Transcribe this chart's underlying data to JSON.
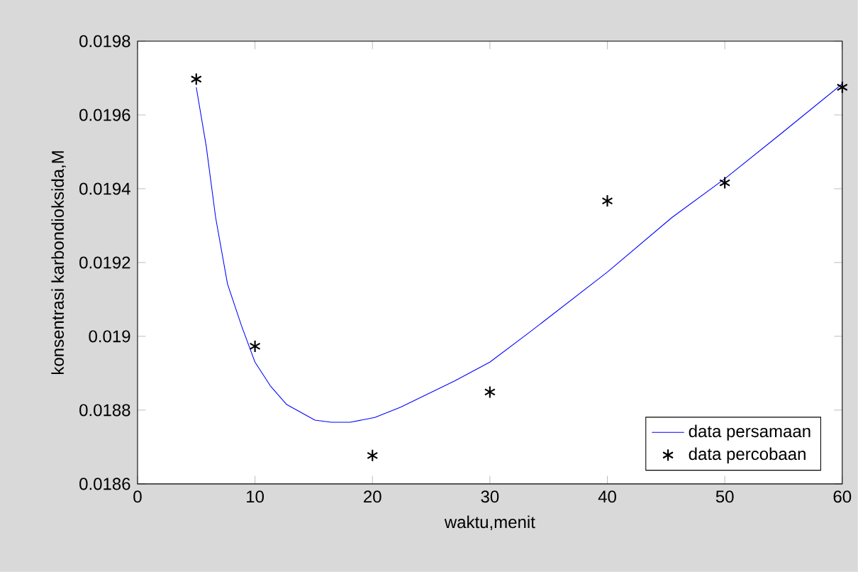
{
  "chart_data": {
    "type": "line",
    "xlabel": "waktu,menit",
    "ylabel": "konsentrasi karbondioksida,M",
    "xlim": [
      0,
      60
    ],
    "xticks": [
      0,
      10,
      20,
      30,
      40,
      50,
      60
    ],
    "ylim": [
      0.0186,
      0.0198
    ],
    "yticks": [
      0.0186,
      0.0188,
      0.019,
      0.0192,
      0.0194,
      0.0196,
      0.0198
    ],
    "legend": "bottom right",
    "grid": false,
    "series": [
      {
        "name": "data persamaan",
        "color": "#0000ff",
        "marker": "none",
        "line_style": "solid",
        "x": [
          5,
          5.85,
          6.65,
          7.66,
          8.87,
          10,
          11.3,
          12.7,
          15.1,
          16.5,
          18.1,
          20.2,
          22.4,
          27,
          30,
          33.5,
          40,
          45.5,
          50,
          54.7,
          60
        ],
        "values": [
          0.019675,
          0.019515,
          0.019322,
          0.019142,
          0.019027,
          0.01893,
          0.018866,
          0.018815,
          0.018773,
          0.018767,
          0.018767,
          0.01878,
          0.018808,
          0.018879,
          0.01893,
          0.019014,
          0.019174,
          0.019322,
          0.019427,
          0.019547,
          0.019684
        ]
      },
      {
        "name": "data percobaan",
        "type": "scatter",
        "color": "#000000",
        "marker": "cross",
        "x": [
          5,
          10,
          20,
          30,
          40,
          50,
          60
        ],
        "values": [
          0.019697,
          0.018973,
          0.018677,
          0.018849,
          0.019367,
          0.019416,
          0.019675
        ]
      }
    ]
  }
}
